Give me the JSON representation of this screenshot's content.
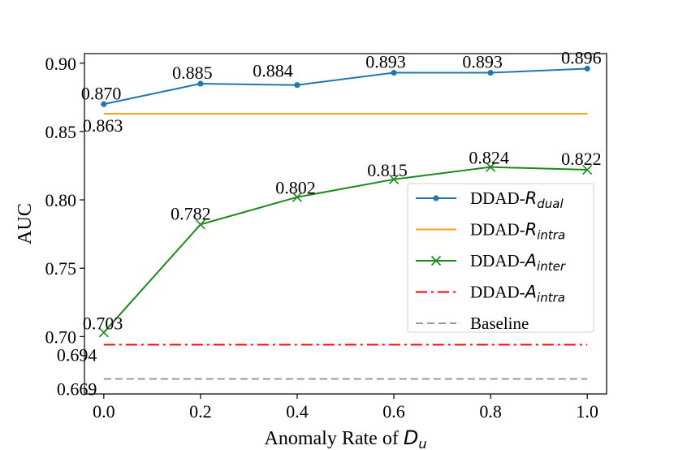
{
  "chart_data": {
    "type": "line",
    "title": "",
    "xlabel": "Anomaly Rate of ",
    "xlabel_var": "D",
    "xlabel_sub": "u",
    "ylabel": "AUC",
    "xlim": [
      -0.04,
      1.04
    ],
    "ylim": [
      0.658,
      0.907
    ],
    "grid": false,
    "legend_position": "center-right",
    "x": [
      0.0,
      0.2,
      0.4,
      0.6,
      0.8,
      1.0
    ],
    "x_tick_labels": [
      "0.0",
      "0.2",
      "0.4",
      "0.6",
      "0.8",
      "1.0"
    ],
    "y_ticks": [
      0.7,
      0.75,
      0.8,
      0.85,
      0.9
    ],
    "y_tick_labels": [
      "0.70",
      "0.75",
      "0.80",
      "0.85",
      "0.90"
    ],
    "series": [
      {
        "name": "DDAD-R_dual",
        "legend_prefix": "DDAD-",
        "legend_var": "R",
        "legend_sub": "dual",
        "kind": "markers-dot",
        "color": "#1f77b4",
        "dash": "",
        "values": [
          0.87,
          0.885,
          0.884,
          0.893,
          0.893,
          0.896
        ],
        "labels": [
          "0.870",
          "0.885",
          "0.884",
          "0.893",
          "0.893",
          "0.896"
        ]
      },
      {
        "name": "DDAD-R_intra",
        "legend_prefix": "DDAD-",
        "legend_var": "R",
        "legend_sub": "intra",
        "kind": "line",
        "color": "#ff9f1a",
        "dash": "",
        "values": [
          0.863,
          0.863,
          0.863,
          0.863,
          0.863,
          0.863
        ],
        "labels": [
          "0.863"
        ]
      },
      {
        "name": "DDAD-A_inter",
        "legend_prefix": "DDAD-",
        "legend_var": "A",
        "legend_sub": "inter",
        "kind": "markers-x",
        "color": "#1a8a1a",
        "dash": "",
        "values": [
          0.703,
          0.782,
          0.802,
          0.815,
          0.824,
          0.822
        ],
        "labels": [
          "0.703",
          "0.782",
          "0.802",
          "0.815",
          "0.824",
          "0.822"
        ]
      },
      {
        "name": "DDAD-A_intra",
        "legend_prefix": "DDAD-",
        "legend_var": "A",
        "legend_sub": "intra",
        "kind": "line",
        "color": "#ff0000",
        "dash": "14,5,3,5",
        "values": [
          0.694,
          0.694,
          0.694,
          0.694,
          0.694,
          0.694
        ],
        "labels": [
          "0.694"
        ]
      },
      {
        "name": "Baseline",
        "legend_prefix": "Baseline",
        "legend_var": "",
        "legend_sub": "",
        "kind": "line",
        "color": "#999999",
        "dash": "9,5",
        "values": [
          0.669,
          0.669,
          0.669,
          0.669,
          0.669,
          0.669
        ],
        "labels": [
          "0.669"
        ]
      }
    ]
  }
}
